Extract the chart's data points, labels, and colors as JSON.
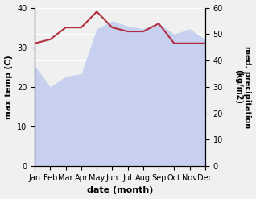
{
  "months": [
    "Jan",
    "Feb",
    "Mar",
    "Apr",
    "May",
    "Jun",
    "Jul",
    "Aug",
    "Sep",
    "Oct",
    "Nov",
    "Dec"
  ],
  "temperature": [
    31,
    32,
    35,
    35,
    39,
    35,
    34,
    34,
    36,
    31,
    31,
    31
  ],
  "precipitation": [
    38,
    30,
    34,
    35,
    52,
    55,
    53,
    52,
    54,
    50,
    52,
    48
  ],
  "temp_color": "#b03040",
  "precip_color_fill": "#c8d0ef",
  "xlabel": "date (month)",
  "ylabel_left": "max temp (C)",
  "ylabel_right": "med. precipitation\n(kg/m2)",
  "ylim_left": [
    0,
    40
  ],
  "ylim_right": [
    0,
    60
  ],
  "yticks_left": [
    0,
    10,
    20,
    30,
    40
  ],
  "yticks_right": [
    0,
    10,
    20,
    30,
    40,
    50,
    60
  ],
  "bg_color": "#f0f0f0",
  "fig_bg": "#f0f0f0"
}
